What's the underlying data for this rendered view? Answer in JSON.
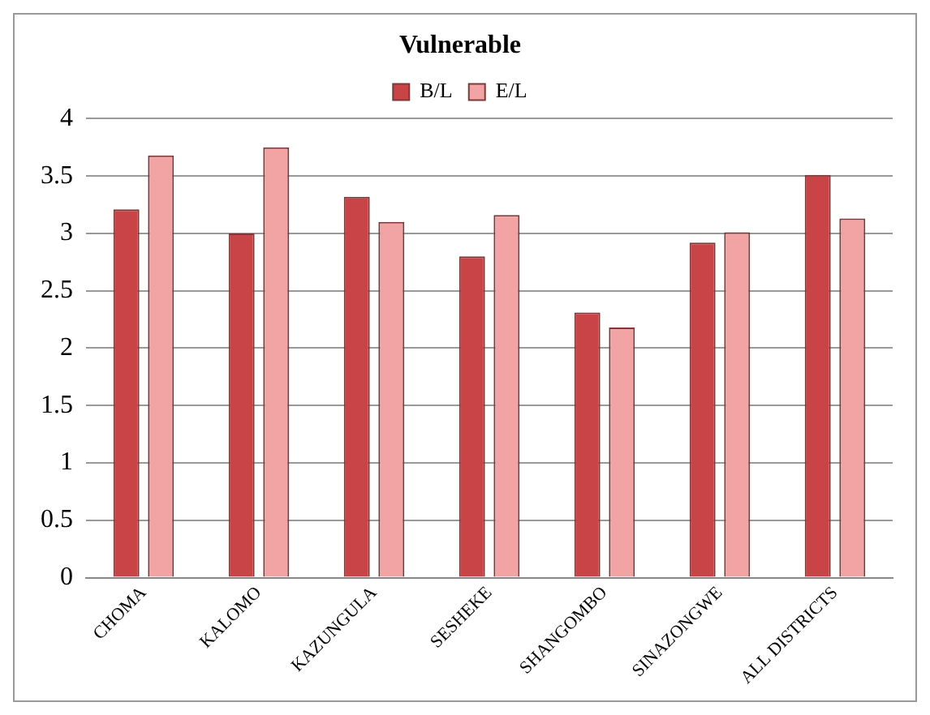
{
  "chart_data": {
    "type": "bar",
    "title": "Vulnerable",
    "categories": [
      "CHOMA",
      "KALOMO",
      "KAZUNGULA",
      "SESHEKE",
      "SHANGOMBO",
      "SINAZONGWE",
      "ALL DISTRICTS"
    ],
    "series": [
      {
        "name": "B/L",
        "color": "#c94446",
        "values": [
          3.21,
          3.0,
          3.32,
          2.8,
          2.31,
          2.92,
          3.51
        ]
      },
      {
        "name": "E/L",
        "color": "#f2a3a3",
        "values": [
          3.68,
          3.75,
          3.1,
          3.16,
          2.18,
          3.01,
          3.13
        ]
      }
    ],
    "ylim": [
      0,
      4
    ],
    "yticks": [
      0,
      0.5,
      1,
      1.5,
      2,
      2.5,
      3,
      3.5,
      4
    ],
    "grid": "y",
    "legend": "top"
  }
}
